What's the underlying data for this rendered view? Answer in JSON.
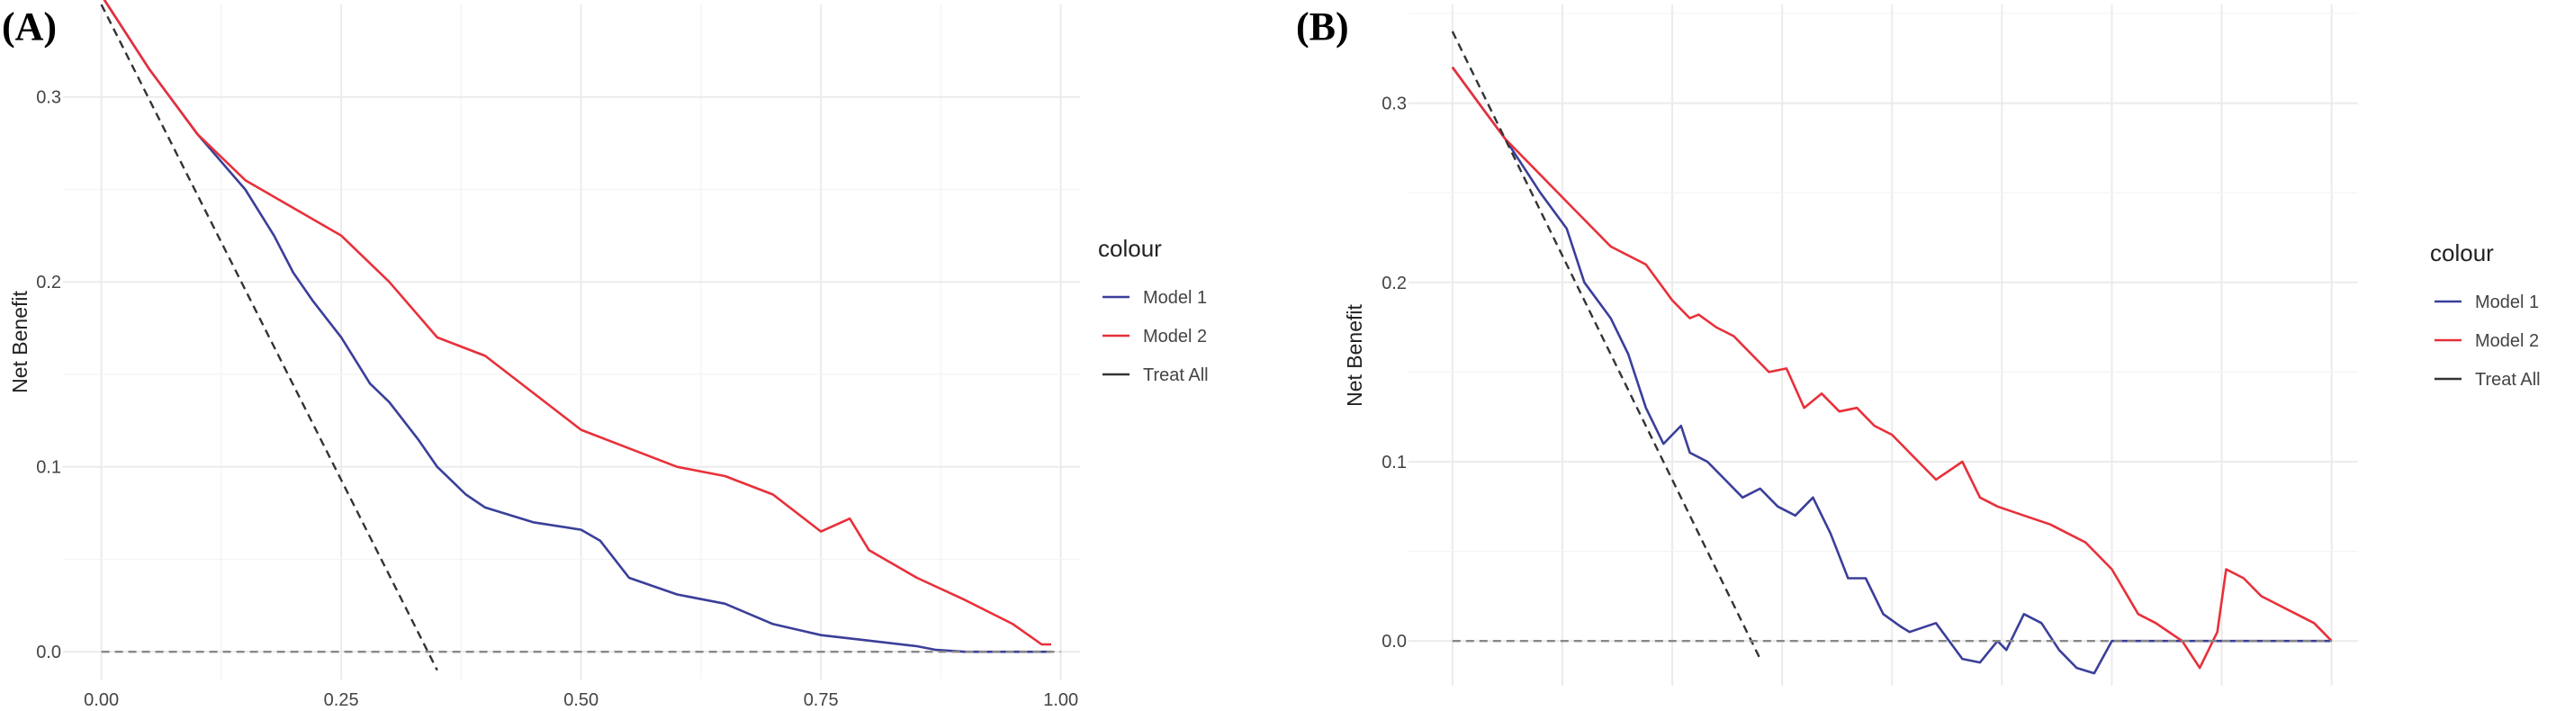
{
  "chart_data": [
    {
      "type": "line",
      "panel_label": "(A)",
      "xlabel": "",
      "ylabel": "Net Benefit",
      "xlim": [
        -0.04,
        1.02
      ],
      "ylim": [
        -0.015,
        0.35
      ],
      "xticks": [
        0.0,
        0.25,
        0.5,
        0.75,
        1.0
      ],
      "xtick_labels": [
        "0.00",
        "0.25",
        "0.50",
        "0.75",
        "1.00"
      ],
      "yticks": [
        0.0,
        0.1,
        0.2,
        0.3
      ],
      "ytick_labels": [
        "0.0",
        "0.1",
        "0.2",
        "0.3"
      ],
      "grid": true,
      "legend_title": "colour",
      "legend_position": "right",
      "series": [
        {
          "name": "Model 1",
          "color": "#3a3f9a",
          "dash": "solid",
          "x": [
            0.0,
            0.05,
            0.1,
            0.15,
            0.18,
            0.2,
            0.22,
            0.25,
            0.28,
            0.3,
            0.33,
            0.35,
            0.38,
            0.4,
            0.45,
            0.5,
            0.52,
            0.55,
            0.6,
            0.65,
            0.7,
            0.75,
            0.8,
            0.85,
            0.87,
            0.9,
            0.95,
            0.99
          ],
          "y": [
            0.355,
            0.315,
            0.28,
            0.25,
            0.225,
            0.205,
            0.19,
            0.17,
            0.145,
            0.135,
            0.115,
            0.1,
            0.085,
            0.078,
            0.07,
            0.066,
            0.06,
            0.04,
            0.031,
            0.026,
            0.015,
            0.009,
            0.006,
            0.003,
            0.001,
            0.0,
            0.0,
            0.0
          ]
        },
        {
          "name": "Model 2",
          "color": "#e8303a",
          "dash": "solid",
          "x": [
            0.0,
            0.05,
            0.1,
            0.15,
            0.2,
            0.25,
            0.3,
            0.35,
            0.4,
            0.45,
            0.5,
            0.55,
            0.6,
            0.65,
            0.7,
            0.75,
            0.78,
            0.8,
            0.85,
            0.9,
            0.95,
            0.98,
            0.99
          ],
          "y": [
            0.355,
            0.315,
            0.28,
            0.255,
            0.24,
            0.225,
            0.2,
            0.17,
            0.16,
            0.14,
            0.12,
            0.11,
            0.1,
            0.095,
            0.085,
            0.065,
            0.072,
            0.055,
            0.04,
            0.028,
            0.015,
            0.004,
            0.004
          ]
        },
        {
          "name": "Treat All",
          "color": "#333333",
          "dash": "dashed",
          "x": [
            0.0,
            0.35
          ],
          "y": [
            0.35,
            -0.01
          ]
        },
        {
          "name": "",
          "color": "#888888",
          "dash": "dashed",
          "x": [
            0.0,
            1.0
          ],
          "y": [
            0.0,
            0.0
          ]
        }
      ]
    },
    {
      "type": "line",
      "panel_label": "(B)",
      "xlabel": "",
      "ylabel": "Net Benefit",
      "xlim": [
        -0.05,
        1.03
      ],
      "ylim": [
        -0.025,
        0.355
      ],
      "xticks": [],
      "xtick_labels": [],
      "yticks": [
        0.0,
        0.1,
        0.2,
        0.3
      ],
      "ytick_labels": [
        "0.0",
        "0.1",
        "0.2",
        "0.3"
      ],
      "grid": true,
      "legend_title": "colour",
      "legend_position": "right",
      "series": [
        {
          "name": "Model 1",
          "color": "#3a3f9a",
          "dash": "solid",
          "x": [
            0.0,
            0.03,
            0.06,
            0.1,
            0.13,
            0.15,
            0.18,
            0.2,
            0.22,
            0.24,
            0.26,
            0.27,
            0.29,
            0.31,
            0.33,
            0.35,
            0.37,
            0.39,
            0.41,
            0.43,
            0.45,
            0.47,
            0.49,
            0.51,
            0.52,
            0.55,
            0.58,
            0.6,
            0.62,
            0.63,
            0.65,
            0.67,
            0.69,
            0.71,
            0.73,
            0.75,
            0.77,
            0.8,
            0.85,
            0.9,
            0.95,
            1.0
          ],
          "y": [
            0.32,
            0.3,
            0.28,
            0.25,
            0.23,
            0.2,
            0.18,
            0.16,
            0.13,
            0.11,
            0.12,
            0.105,
            0.1,
            0.09,
            0.08,
            0.085,
            0.075,
            0.07,
            0.08,
            0.06,
            0.035,
            0.035,
            0.015,
            0.008,
            0.005,
            0.01,
            -0.01,
            -0.012,
            0.0,
            -0.005,
            0.015,
            0.01,
            -0.005,
            -0.015,
            -0.018,
            0.0,
            0.0,
            0.0,
            0.0,
            0.0,
            0.0,
            0.0
          ]
        },
        {
          "name": "Model 2",
          "color": "#e8303a",
          "dash": "solid",
          "x": [
            0.0,
            0.03,
            0.06,
            0.1,
            0.14,
            0.18,
            0.2,
            0.22,
            0.25,
            0.27,
            0.28,
            0.3,
            0.32,
            0.34,
            0.36,
            0.38,
            0.4,
            0.42,
            0.44,
            0.46,
            0.48,
            0.5,
            0.52,
            0.55,
            0.58,
            0.6,
            0.62,
            0.65,
            0.68,
            0.7,
            0.72,
            0.75,
            0.78,
            0.8,
            0.83,
            0.85,
            0.87,
            0.88,
            0.9,
            0.92,
            0.94,
            0.96,
            0.98,
            1.0
          ],
          "y": [
            0.32,
            0.3,
            0.28,
            0.26,
            0.24,
            0.22,
            0.215,
            0.21,
            0.19,
            0.18,
            0.182,
            0.175,
            0.17,
            0.16,
            0.15,
            0.152,
            0.13,
            0.138,
            0.128,
            0.13,
            0.12,
            0.115,
            0.105,
            0.09,
            0.1,
            0.08,
            0.075,
            0.07,
            0.065,
            0.06,
            0.055,
            0.04,
            0.015,
            0.01,
            0.0,
            -0.015,
            0.005,
            0.04,
            0.035,
            0.025,
            0.02,
            0.015,
            0.01,
            0.0
          ]
        },
        {
          "name": "Treat All",
          "color": "#333333",
          "dash": "dashed",
          "x": [
            0.0,
            0.35
          ],
          "y": [
            0.34,
            -0.01
          ]
        },
        {
          "name": "",
          "color": "#888888",
          "dash": "dashed",
          "x": [
            0.0,
            1.0
          ],
          "y": [
            0.0,
            0.0
          ]
        }
      ]
    }
  ]
}
